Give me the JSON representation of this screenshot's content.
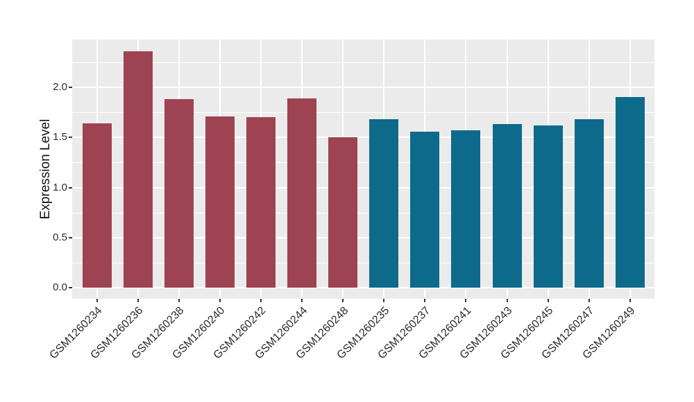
{
  "chart_data": {
    "type": "bar",
    "title": "",
    "xlabel": "",
    "ylabel": "Expression Level",
    "categories": [
      "GSM1260234",
      "GSM1260236",
      "GSM1260238",
      "GSM1260240",
      "GSM1260242",
      "GSM1260244",
      "GSM1260248",
      "GSM1260235",
      "GSM1260237",
      "GSM1260241",
      "GSM1260243",
      "GSM1260245",
      "GSM1260247",
      "GSM1260249"
    ],
    "values": [
      1.64,
      2.36,
      1.88,
      1.71,
      1.7,
      1.89,
      1.5,
      1.68,
      1.56,
      1.57,
      1.63,
      1.62,
      1.68,
      1.9
    ],
    "groups": [
      "left",
      "left",
      "left",
      "left",
      "left",
      "left",
      "left",
      "right",
      "right",
      "right",
      "right",
      "right",
      "right",
      "right"
    ],
    "group_colors": {
      "left": "#9E4352",
      "right": "#0E6A8B"
    },
    "ytick_labels": [
      "0.0",
      "0.5",
      "1.0",
      "1.5",
      "2.0"
    ],
    "ytick_values": [
      0,
      0.5,
      1.0,
      1.5,
      2.0
    ],
    "yminor_values": [
      0.25,
      0.75,
      1.25,
      1.75,
      2.25
    ],
    "ylim": [
      -0.11,
      2.48
    ],
    "grid": "major and minor horizontal + major vertical, white lines on gray panel",
    "legend": "none",
    "panel_background": "#EBEBEB",
    "gridline_color": "#FFFFFF",
    "axis_text_color": "#2b2b2b",
    "x_label_angle_deg": 45,
    "bar_width_fraction": 0.71
  }
}
